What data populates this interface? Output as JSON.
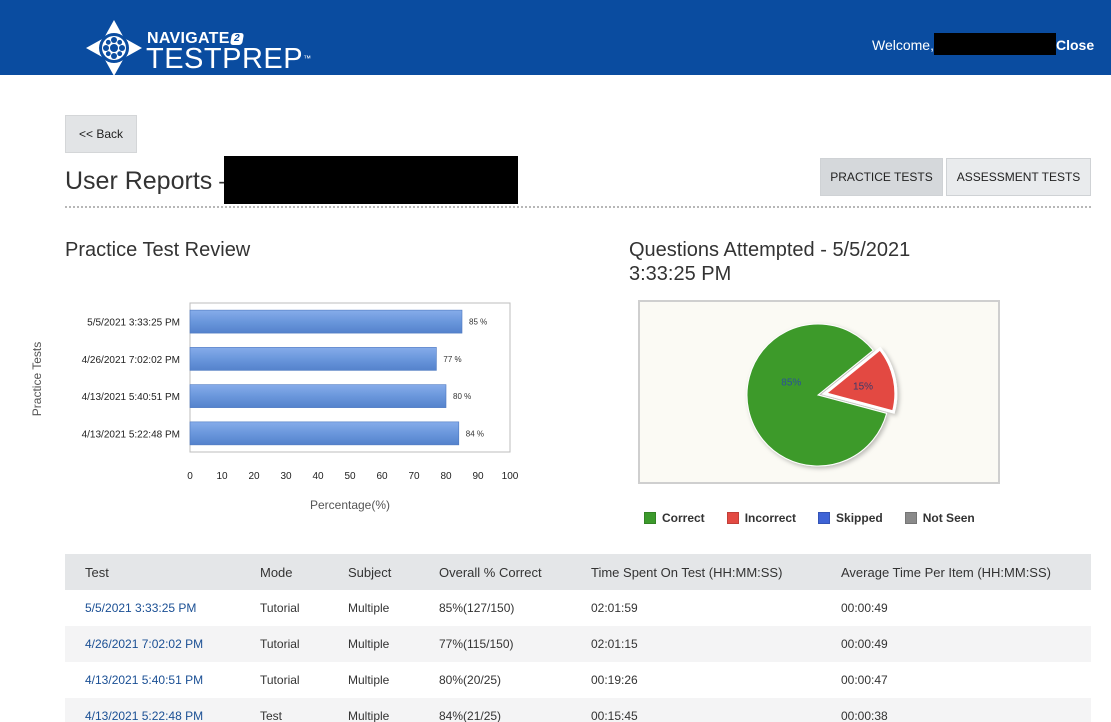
{
  "header": {
    "brand_top": "NAVIGATE",
    "brand_badge": "2",
    "brand_main": "TESTPREP",
    "brand_tm": "™",
    "welcome": "Welcome,",
    "close_label": "Close",
    "bg_color": "#0a4ca0"
  },
  "nav": {
    "back_label": "<< Back",
    "page_title": "User Reports –",
    "tabs": [
      {
        "label": "PRACTICE TESTS",
        "active": true
      },
      {
        "label": "ASSESSMENT TESTS",
        "active": false
      }
    ]
  },
  "practice_review": {
    "title": "Practice Test Review"
  },
  "questions_attempted": {
    "title": "Questions Attempted - 5/5/2021 3:33:25 PM",
    "legend": [
      {
        "label": "Correct",
        "color": "#3c9a2c"
      },
      {
        "label": "Incorrect",
        "color": "#e34a43"
      },
      {
        "label": "Skipped",
        "color": "#3e63d6"
      },
      {
        "label": "Not Seen",
        "color": "#8a8a8a"
      }
    ]
  },
  "chart_data": [
    {
      "type": "bar",
      "orientation": "horizontal",
      "categories": [
        "5/5/2021 3:33:25 PM",
        "4/26/2021 7:02:02 PM",
        "4/13/2021 5:40:51 PM",
        "4/13/2021 5:22:48 PM"
      ],
      "values": [
        85,
        77,
        80,
        84
      ],
      "data_labels": [
        "85 %",
        "77 %",
        "80 %",
        "84 %"
      ],
      "xlabel": "Percentage(%)",
      "ylabel": "Practice Tests",
      "xlim": [
        0,
        100
      ],
      "xticks": [
        0,
        10,
        20,
        30,
        40,
        50,
        60,
        70,
        80,
        90,
        100
      ],
      "bar_color": "#6a97dc"
    },
    {
      "type": "pie",
      "labels": [
        "Correct",
        "Incorrect"
      ],
      "values": [
        85,
        15
      ],
      "data_labels": [
        "85%",
        "15%"
      ],
      "colors": [
        "#3c9a2c",
        "#e34a43"
      ]
    }
  ],
  "table": {
    "columns": [
      "Test",
      "Mode",
      "Subject",
      "Overall % Correct",
      "Time Spent On Test (HH:MM:SS)",
      "Average Time Per Item (HH:MM:SS)"
    ],
    "rows": [
      [
        "5/5/2021 3:33:25 PM",
        "Tutorial",
        "Multiple",
        "85%(127/150)",
        "02:01:59",
        "00:00:49"
      ],
      [
        "4/26/2021 7:02:02 PM",
        "Tutorial",
        "Multiple",
        "77%(115/150)",
        "02:01:15",
        "00:00:49"
      ],
      [
        "4/13/2021 5:40:51 PM",
        "Tutorial",
        "Multiple",
        "80%(20/25)",
        "00:19:26",
        "00:00:47"
      ],
      [
        "4/13/2021 5:22:48 PM",
        "Test",
        "Multiple",
        "84%(21/25)",
        "00:15:45",
        "00:00:38"
      ]
    ]
  }
}
